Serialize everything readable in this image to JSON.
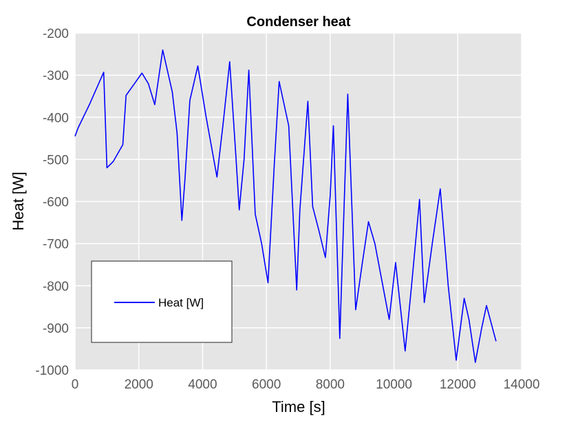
{
  "chart_data": {
    "type": "line",
    "title": "Condenser heat",
    "xlabel": "Time [s]",
    "ylabel": "Heat [W]",
    "xlim": [
      0,
      14000
    ],
    "ylim": [
      -1000,
      -200
    ],
    "xticks": [
      0,
      2000,
      4000,
      6000,
      8000,
      10000,
      12000,
      14000
    ],
    "yticks": [
      -200,
      -300,
      -400,
      -500,
      -600,
      -700,
      -800,
      -900,
      -1000
    ],
    "x_tick_labels": [
      "0",
      "2000",
      "4000",
      "6000",
      "8000",
      "10000",
      "12000",
      "14000"
    ],
    "y_tick_labels": [
      "-200",
      "-300",
      "-400",
      "-500",
      "-600",
      "-700",
      "-800",
      "-900",
      "-1000"
    ],
    "grid": true,
    "background_color": "#e5e5e5",
    "grid_color": "#ffffff",
    "legend": {
      "position": "lower-left",
      "entries": [
        "Heat [W]"
      ]
    },
    "series": [
      {
        "name": "Heat [W]",
        "color": "#0000ff",
        "x": [
          0,
          100,
          450,
          900,
          1000,
          1200,
          1500,
          1600,
          2100,
          2300,
          2500,
          2750,
          3050,
          3200,
          3350,
          3450,
          3600,
          3850,
          4100,
          4450,
          4650,
          4850,
          5050,
          5150,
          5300,
          5450,
          5650,
          5850,
          6050,
          6250,
          6400,
          6700,
          6950,
          7050,
          7300,
          7450,
          7650,
          7850,
          8000,
          8100,
          8300,
          8550,
          8800,
          9000,
          9200,
          9400,
          9850,
          10050,
          10350,
          10550,
          10800,
          10950,
          11200,
          11450,
          11700,
          11950,
          12200,
          12350,
          12550,
          12750,
          12900,
          13200
        ],
        "y": [
          -445,
          -425,
          -370,
          -293,
          -520,
          -505,
          -465,
          -348,
          -295,
          -320,
          -370,
          -240,
          -340,
          -437,
          -645,
          -545,
          -360,
          -278,
          -395,
          -542,
          -410,
          -268,
          -500,
          -620,
          -500,
          -288,
          -630,
          -700,
          -793,
          -510,
          -315,
          -420,
          -810,
          -620,
          -362,
          -612,
          -670,
          -733,
          -585,
          -420,
          -925,
          -345,
          -857,
          -750,
          -648,
          -700,
          -880,
          -745,
          -955,
          -800,
          -595,
          -840,
          -700,
          -570,
          -800,
          -977,
          -830,
          -880,
          -982,
          -900,
          -847,
          -932
        ]
      }
    ]
  }
}
